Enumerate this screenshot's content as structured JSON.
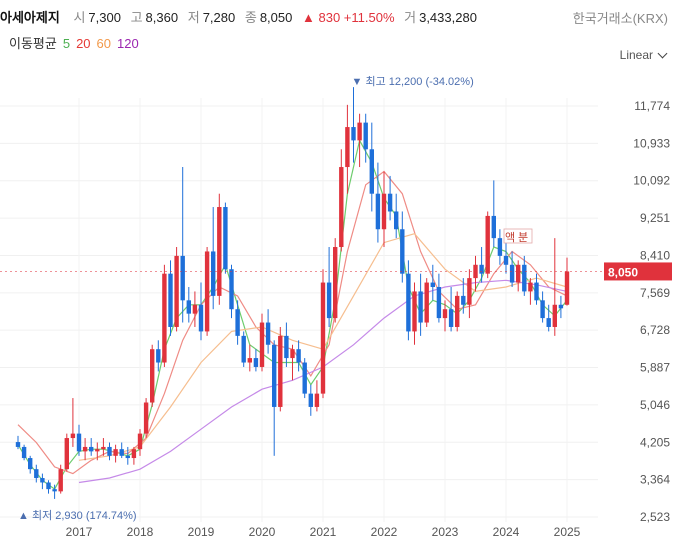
{
  "header": {
    "name": "아세아제지",
    "open_label": "시",
    "open": "7,300",
    "high_label": "고",
    "high": "8,360",
    "low_label": "저",
    "low": "7,280",
    "close_label": "종",
    "close": "8,050",
    "change": "▲ 830 +11.50%",
    "volume_label": "거",
    "volume": "3,433,280",
    "exchange": "한국거래소(KRX)"
  },
  "moving_average": {
    "label": "이동평균",
    "periods": [
      {
        "label": "5",
        "color": "#4caf50"
      },
      {
        "label": "20",
        "color": "#e53935"
      },
      {
        "label": "60",
        "color": "#f2994a"
      },
      {
        "label": "120",
        "color": "#9c27b0"
      }
    ]
  },
  "scale_selector": {
    "label": "Linear"
  },
  "colors": {
    "up": "#e0323c",
    "down": "#1e6fd9",
    "ma5": "#6dcc6d",
    "ma20": "#ef8b85",
    "ma60": "#f6be8f",
    "ma120": "#c58ae8",
    "current_badge": "#e0323c",
    "max_label": "#4b6eaf",
    "min_label": "#4b6eaf"
  },
  "chart_data": {
    "type": "candlestick",
    "title": "아세아제지",
    "interval": "weekly",
    "y_ticks": [
      "11,774",
      "10,933",
      "10,092",
      "9,251",
      "8,410",
      "7,569",
      "6,728",
      "5,887",
      "5,046",
      "4,205",
      "3,364",
      "2,523"
    ],
    "ylim": [
      2523,
      11774
    ],
    "x_ticks": [
      "2017",
      "2018",
      "2019",
      "2020",
      "2021",
      "2022",
      "2023",
      "2024",
      "2025"
    ],
    "current_price": "8,050",
    "max_label": "▼ 최고 12,200 (-34.02%)",
    "min_label": "▲ 최저 2,930 (174.74%)",
    "annotations": [
      "액",
      "분"
    ],
    "candles": [
      [
        2016.0,
        4210,
        4350,
        4050,
        4100
      ],
      [
        2016.1,
        4100,
        4150,
        3800,
        3850
      ],
      [
        2016.2,
        3850,
        3900,
        3500,
        3600
      ],
      [
        2016.3,
        3600,
        3700,
        3300,
        3400
      ],
      [
        2016.4,
        3400,
        3500,
        3150,
        3300
      ],
      [
        2016.5,
        3300,
        3350,
        3050,
        3150
      ],
      [
        2016.6,
        3150,
        3250,
        2930,
        3100
      ],
      [
        2016.7,
        3100,
        3700,
        3050,
        3600
      ],
      [
        2016.8,
        3600,
        4400,
        3550,
        4300
      ],
      [
        2016.9,
        4300,
        5200,
        4100,
        4400
      ],
      [
        2017.0,
        4400,
        4600,
        3900,
        4000
      ],
      [
        2017.1,
        4000,
        4300,
        3800,
        4100
      ],
      [
        2017.2,
        4100,
        4300,
        3900,
        4000
      ],
      [
        2017.3,
        4000,
        4200,
        3800,
        4050
      ],
      [
        2017.4,
        4050,
        4300,
        3900,
        4100
      ],
      [
        2017.5,
        4100,
        4200,
        3800,
        3900
      ],
      [
        2017.6,
        3900,
        4150,
        3750,
        4050
      ],
      [
        2017.7,
        4050,
        4200,
        3850,
        3900
      ],
      [
        2017.8,
        3900,
        4100,
        3700,
        3850
      ],
      [
        2017.9,
        3850,
        4100,
        3700,
        4050
      ],
      [
        2018.0,
        4050,
        4500,
        3900,
        4400
      ],
      [
        2018.1,
        4400,
        5200,
        4300,
        5100
      ],
      [
        2018.2,
        5100,
        6400,
        5000,
        6300
      ],
      [
        2018.3,
        6300,
        6500,
        5800,
        6000
      ],
      [
        2018.4,
        6000,
        8200,
        5900,
        8000
      ],
      [
        2018.5,
        8000,
        8300,
        6600,
        6800
      ],
      [
        2018.6,
        6800,
        8600,
        6700,
        8400
      ],
      [
        2018.7,
        8400,
        10400,
        6900,
        7400
      ],
      [
        2018.8,
        7400,
        7700,
        6900,
        7100
      ],
      [
        2018.9,
        7100,
        7600,
        6800,
        7300
      ],
      [
        2019.0,
        7300,
        7800,
        6500,
        6700
      ],
      [
        2019.1,
        6700,
        8600,
        6600,
        8500
      ],
      [
        2019.2,
        8500,
        9500,
        7200,
        7500
      ],
      [
        2019.3,
        7500,
        9800,
        7300,
        9500
      ],
      [
        2019.4,
        9500,
        9600,
        8000,
        8100
      ],
      [
        2019.5,
        8100,
        8200,
        7000,
        7200
      ],
      [
        2019.6,
        7200,
        7400,
        6400,
        6600
      ],
      [
        2019.7,
        6600,
        6700,
        5900,
        6000
      ],
      [
        2019.8,
        6000,
        6400,
        5800,
        6100
      ],
      [
        2019.9,
        6100,
        6300,
        5800,
        5900
      ],
      [
        2020.0,
        5900,
        7100,
        5800,
        6900
      ],
      [
        2020.1,
        6900,
        7200,
        6200,
        6400
      ],
      [
        2020.2,
        6400,
        6500,
        3900,
        5000
      ],
      [
        2020.3,
        5000,
        6800,
        4900,
        6600
      ],
      [
        2020.4,
        6600,
        6900,
        5900,
        6100
      ],
      [
        2020.5,
        6100,
        6400,
        5600,
        6300
      ],
      [
        2020.6,
        6300,
        6500,
        5800,
        6000
      ],
      [
        2020.7,
        6000,
        6100,
        5200,
        5300
      ],
      [
        2020.8,
        5300,
        5500,
        4800,
        5000
      ],
      [
        2020.9,
        5000,
        5600,
        4900,
        5300
      ],
      [
        2021.0,
        5300,
        8100,
        5200,
        7800
      ],
      [
        2021.1,
        7800,
        8600,
        6800,
        7000
      ],
      [
        2021.2,
        7000,
        8800,
        6900,
        8600
      ],
      [
        2021.3,
        8600,
        10800,
        8500,
        10400
      ],
      [
        2021.4,
        10400,
        11800,
        9800,
        11300
      ],
      [
        2021.5,
        11300,
        12200,
        10500,
        11000
      ],
      [
        2021.6,
        11000,
        11600,
        10400,
        11400
      ],
      [
        2021.7,
        11400,
        11600,
        10500,
        10800
      ],
      [
        2021.8,
        10800,
        11400,
        9400,
        9800
      ],
      [
        2021.9,
        9800,
        10500,
        8700,
        9000
      ],
      [
        2022.0,
        9000,
        10300,
        8600,
        9800
      ],
      [
        2022.1,
        9800,
        10200,
        9200,
        9400
      ],
      [
        2022.2,
        9400,
        9800,
        8800,
        9000
      ],
      [
        2022.3,
        9000,
        9400,
        7800,
        8000
      ],
      [
        2022.4,
        8000,
        8300,
        6500,
        6700
      ],
      [
        2022.5,
        6700,
        7800,
        6400,
        7600
      ],
      [
        2022.6,
        7600,
        8000,
        6600,
        6900
      ],
      [
        2022.7,
        6900,
        7900,
        6800,
        7800
      ],
      [
        2022.8,
        7800,
        8200,
        7400,
        7700
      ],
      [
        2022.9,
        7700,
        8000,
        6900,
        7000
      ],
      [
        2023.0,
        7000,
        7400,
        6700,
        7200
      ],
      [
        2023.1,
        7200,
        7700,
        6700,
        6800
      ],
      [
        2023.2,
        6800,
        7600,
        6700,
        7500
      ],
      [
        2023.3,
        7500,
        7900,
        7100,
        7300
      ],
      [
        2023.4,
        7300,
        8100,
        7000,
        7900
      ],
      [
        2023.5,
        7900,
        8400,
        7600,
        8200
      ],
      [
        2023.6,
        8200,
        8600,
        7800,
        8000
      ],
      [
        2023.7,
        8000,
        9400,
        7900,
        9300
      ],
      [
        2023.8,
        9300,
        10100,
        8600,
        8800
      ],
      [
        2023.9,
        8800,
        9000,
        8200,
        8400
      ],
      [
        2024.0,
        8400,
        8700,
        8000,
        8200
      ],
      [
        2024.1,
        8200,
        8500,
        7700,
        7800
      ],
      [
        2024.2,
        7800,
        8300,
        7600,
        8200
      ],
      [
        2024.3,
        8200,
        8400,
        7500,
        7600
      ],
      [
        2024.4,
        7600,
        7900,
        7300,
        7800
      ],
      [
        2024.5,
        7800,
        8000,
        7300,
        7400
      ],
      [
        2024.6,
        7400,
        7600,
        6900,
        7000
      ],
      [
        2024.7,
        7000,
        7300,
        6700,
        6800
      ],
      [
        2024.8,
        6800,
        8800,
        6600,
        7300
      ],
      [
        2024.9,
        7300,
        7500,
        7000,
        7220
      ],
      [
        2025.0,
        7300,
        8360,
        7280,
        8050
      ]
    ],
    "series": [
      {
        "name": "MA5",
        "color": "#6dcc6d",
        "values": [
          [
            2016.0,
            4150
          ],
          [
            2016.2,
            3700
          ],
          [
            2016.4,
            3350
          ],
          [
            2016.6,
            3150
          ],
          [
            2016.8,
            3650
          ],
          [
            2017.0,
            4000
          ],
          [
            2017.2,
            4050
          ],
          [
            2017.4,
            4050
          ],
          [
            2017.6,
            3980
          ],
          [
            2017.8,
            3900
          ],
          [
            2018.0,
            4050
          ],
          [
            2018.2,
            5050
          ],
          [
            2018.4,
            6300
          ],
          [
            2018.6,
            7000
          ],
          [
            2018.8,
            7300
          ],
          [
            2019.0,
            7300
          ],
          [
            2019.2,
            7700
          ],
          [
            2019.4,
            8200
          ],
          [
            2019.6,
            7300
          ],
          [
            2019.8,
            6400
          ],
          [
            2020.0,
            6200
          ],
          [
            2020.2,
            6000
          ],
          [
            2020.4,
            6000
          ],
          [
            2020.6,
            6000
          ],
          [
            2020.8,
            5500
          ],
          [
            2021.0,
            5900
          ],
          [
            2021.2,
            7400
          ],
          [
            2021.4,
            9800
          ],
          [
            2021.6,
            11000
          ],
          [
            2021.8,
            10500
          ],
          [
            2022.0,
            9700
          ],
          [
            2022.2,
            9300
          ],
          [
            2022.4,
            7700
          ],
          [
            2022.6,
            7100
          ],
          [
            2022.8,
            7400
          ],
          [
            2023.0,
            7300
          ],
          [
            2023.2,
            7100
          ],
          [
            2023.4,
            7400
          ],
          [
            2023.6,
            7900
          ],
          [
            2023.8,
            8600
          ],
          [
            2024.0,
            8500
          ],
          [
            2024.2,
            8100
          ],
          [
            2024.4,
            7800
          ],
          [
            2024.6,
            7300
          ],
          [
            2024.8,
            7050
          ],
          [
            2025.0,
            7400
          ]
        ]
      },
      {
        "name": "MA20",
        "color": "#ef8b85",
        "values": [
          [
            2016.0,
            4600
          ],
          [
            2016.3,
            4200
          ],
          [
            2016.6,
            3650
          ],
          [
            2016.9,
            3500
          ],
          [
            2017.2,
            3800
          ],
          [
            2017.5,
            4000
          ],
          [
            2017.8,
            3950
          ],
          [
            2018.1,
            4300
          ],
          [
            2018.4,
            5300
          ],
          [
            2018.7,
            6500
          ],
          [
            2019.0,
            7300
          ],
          [
            2019.3,
            7700
          ],
          [
            2019.6,
            7500
          ],
          [
            2019.9,
            6800
          ],
          [
            2020.2,
            6400
          ],
          [
            2020.5,
            6300
          ],
          [
            2020.8,
            5700
          ],
          [
            2021.1,
            6400
          ],
          [
            2021.4,
            8500
          ],
          [
            2021.7,
            10000
          ],
          [
            2022.0,
            10300
          ],
          [
            2022.3,
            9800
          ],
          [
            2022.6,
            8500
          ],
          [
            2022.9,
            7600
          ],
          [
            2023.2,
            7200
          ],
          [
            2023.5,
            7300
          ],
          [
            2023.8,
            8000
          ],
          [
            2024.1,
            8500
          ],
          [
            2024.4,
            8200
          ],
          [
            2024.7,
            7700
          ],
          [
            2025.0,
            7500
          ]
        ]
      },
      {
        "name": "MA60",
        "color": "#f6be8f",
        "values": [
          [
            2017.0,
            3800
          ],
          [
            2017.5,
            3900
          ],
          [
            2018.0,
            4100
          ],
          [
            2018.5,
            5000
          ],
          [
            2019.0,
            6000
          ],
          [
            2019.5,
            6700
          ],
          [
            2020.0,
            6800
          ],
          [
            2020.5,
            6500
          ],
          [
            2021.0,
            6300
          ],
          [
            2021.5,
            7500
          ],
          [
            2022.0,
            8700
          ],
          [
            2022.5,
            8900
          ],
          [
            2023.0,
            8100
          ],
          [
            2023.5,
            7600
          ],
          [
            2024.0,
            7700
          ],
          [
            2024.5,
            7900
          ],
          [
            2025.0,
            7700
          ]
        ]
      },
      {
        "name": "MA120",
        "color": "#c58ae8",
        "values": [
          [
            2017.0,
            3300
          ],
          [
            2017.5,
            3400
          ],
          [
            2018.0,
            3600
          ],
          [
            2018.5,
            4000
          ],
          [
            2019.0,
            4500
          ],
          [
            2019.5,
            5000
          ],
          [
            2020.0,
            5400
          ],
          [
            2020.5,
            5600
          ],
          [
            2021.0,
            5900
          ],
          [
            2021.5,
            6400
          ],
          [
            2022.0,
            7000
          ],
          [
            2022.5,
            7500
          ],
          [
            2023.0,
            7700
          ],
          [
            2023.5,
            7800
          ],
          [
            2024.0,
            7850
          ],
          [
            2024.5,
            7750
          ],
          [
            2025.0,
            7600
          ]
        ]
      }
    ]
  }
}
